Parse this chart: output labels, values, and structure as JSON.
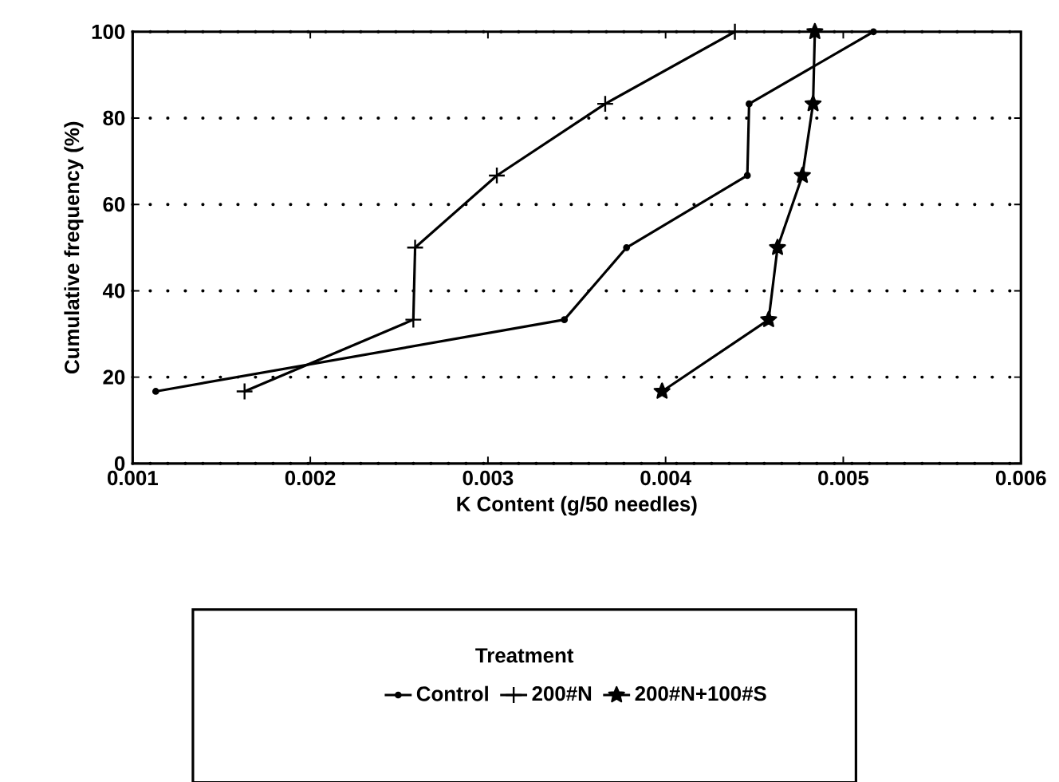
{
  "chart_data": {
    "type": "line",
    "xlabel": "K Content (g/50 needles)",
    "ylabel": "Cumulative frequency (%)",
    "legend_title": "Treatment",
    "xlim": [
      0.001,
      0.006
    ],
    "xticks": [
      0.001,
      0.002,
      0.003,
      0.004,
      0.005,
      0.006
    ],
    "ylim": [
      0,
      100
    ],
    "yticks": [
      0,
      20,
      40,
      60,
      80,
      100
    ],
    "grid": "y",
    "legend": "bottom",
    "line_style": "solid",
    "series": [
      {
        "name": "Control",
        "color": "#000000",
        "marker": "circle",
        "x": [
          0.00113,
          0.00343,
          0.00378,
          0.00446,
          0.00447,
          0.00517
        ],
        "values": [
          16.7,
          33.3,
          50,
          66.7,
          83.3,
          100
        ]
      },
      {
        "name": "200#N",
        "color": "#000000",
        "marker": "cross",
        "x": [
          0.00163,
          0.00258,
          0.00259,
          0.00305,
          0.00366,
          0.00439
        ],
        "values": [
          16.7,
          33.3,
          50,
          66.7,
          83.3,
          100
        ]
      },
      {
        "name": "200#N+100#S",
        "color": "#000000",
        "marker": "star",
        "x": [
          0.00398,
          0.00458,
          0.00463,
          0.00477,
          0.00483,
          0.00484
        ],
        "values": [
          16.7,
          33.3,
          50,
          66.7,
          83.3,
          100
        ]
      }
    ]
  }
}
